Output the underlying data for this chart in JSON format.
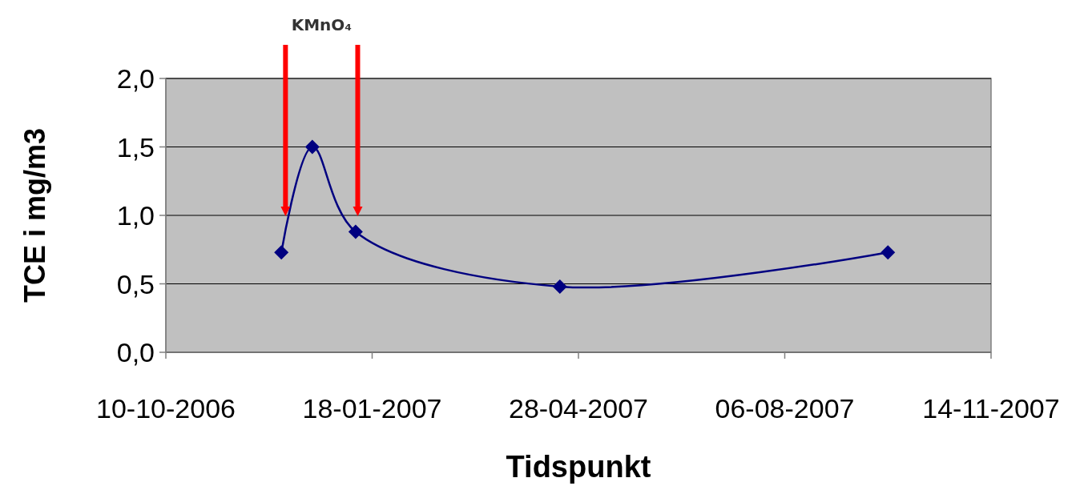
{
  "chart_data": {
    "type": "line",
    "xlabel": "Tidspunkt",
    "ylabel": "TCE i mg/m3",
    "x": [
      "2006-12-05",
      "2006-12-20",
      "2007-01-10",
      "2007-04-19",
      "2007-09-25"
    ],
    "series": [
      {
        "color": "#000080",
        "values": [
          0.73,
          1.5,
          0.88,
          0.48,
          0.73
        ]
      }
    ],
    "xlim": [
      "2006-10-10",
      "2007-11-14"
    ],
    "xticks": [
      {
        "value": "2006-10-10",
        "label": "10-10-2006"
      },
      {
        "value": "2007-01-18",
        "label": "18-01-2007"
      },
      {
        "value": "2007-04-28",
        "label": "28-04-2007"
      },
      {
        "value": "2007-08-06",
        "label": "06-08-2007"
      },
      {
        "value": "2007-11-14",
        "label": "14-11-2007"
      }
    ],
    "ylim": [
      0,
      2
    ],
    "yticks": [
      {
        "value": 0,
        "label": "0,0"
      },
      {
        "value": 0.5,
        "label": "0,5"
      },
      {
        "value": 1,
        "label": "1,0"
      },
      {
        "value": 1.5,
        "label": "1,5"
      },
      {
        "value": 2,
        "label": "2,0"
      }
    ],
    "grid": "y",
    "marker": "diamond",
    "line_style": "solid",
    "annotations": [
      "KMnO₄"
    ],
    "ref_lines": [
      {
        "axis": "x",
        "value": "2006-12-07",
        "color": "#ff0000"
      },
      {
        "axis": "x",
        "value": "2007-01-11",
        "color": "#ff0000"
      }
    ]
  }
}
